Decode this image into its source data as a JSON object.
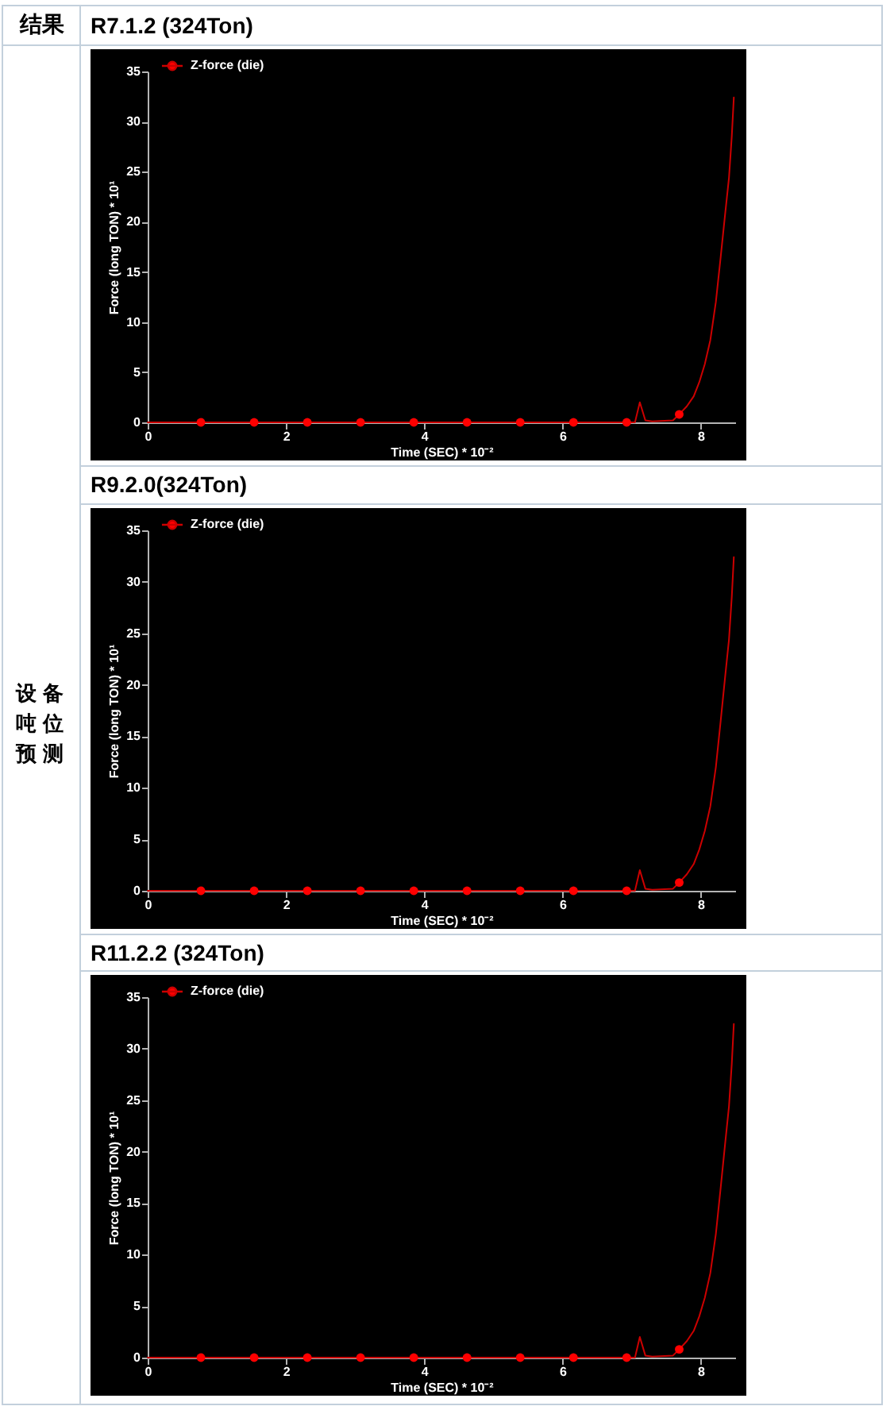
{
  "chart_data": [
    {
      "type": "line",
      "title": "R7.1.2 (324Ton)",
      "annotations": [
        "结果",
        "设备吨位预测"
      ],
      "xlabel": "Time (SEC) * 10⁻²",
      "ylabel": "Force (long TON) * 10¹",
      "xlim": [
        0,
        8.5
      ],
      "xticks": [
        0,
        2,
        4,
        6,
        8
      ],
      "ylim": [
        0,
        35
      ],
      "yticks": [
        0,
        5,
        10,
        15,
        20,
        25,
        30,
        35
      ],
      "legend": "top left",
      "series": [
        {
          "name": "Z-force (die)",
          "color": "#cc0000",
          "x": [
            0,
            7.05,
            7.12,
            7.2,
            7.3,
            7.6,
            7.69,
            7.8,
            7.9,
            7.98,
            8.06,
            8.14,
            8.22,
            8.29,
            8.35,
            8.41,
            8.45,
            8.48
          ],
          "values": [
            0,
            0,
            2.0,
            0.2,
            0.1,
            0.2,
            0.8,
            1.6,
            2.6,
            4.0,
            5.8,
            8.2,
            12,
            16.5,
            20.5,
            24.4,
            28.5,
            32.4
          ]
        },
        {
          "type": "scatter",
          "marker": "circle",
          "color": "#ff0000",
          "x": [
            0.77,
            1.54,
            2.31,
            3.08,
            3.85,
            4.62,
            5.39,
            6.16,
            6.93,
            7.69
          ],
          "values": [
            0,
            0,
            0,
            0,
            0,
            0,
            0,
            0,
            0,
            0.8
          ]
        }
      ]
    },
    {
      "type": "line",
      "title": "R9.2.0(324Ton)",
      "xlabel": "Time (SEC) * 10⁻²",
      "ylabel": "Force (long TON) * 10¹",
      "xlim": [
        0,
        8.5
      ],
      "xticks": [
        0,
        2,
        4,
        6,
        8
      ],
      "ylim": [
        0,
        35
      ],
      "yticks": [
        0,
        5,
        10,
        15,
        20,
        25,
        30,
        35
      ],
      "legend": "top left",
      "series": [
        {
          "name": "Z-force (die)",
          "color": "#cc0000",
          "x": [
            0,
            7.05,
            7.12,
            7.2,
            7.3,
            7.6,
            7.69,
            7.8,
            7.9,
            7.98,
            8.06,
            8.14,
            8.22,
            8.29,
            8.35,
            8.41,
            8.45,
            8.48
          ],
          "values": [
            0,
            0,
            2.0,
            0.2,
            0.1,
            0.2,
            0.8,
            1.6,
            2.6,
            4.0,
            5.8,
            8.2,
            12,
            16.5,
            20.5,
            24.4,
            28.5,
            32.4
          ]
        },
        {
          "type": "scatter",
          "marker": "circle",
          "color": "#ff0000",
          "x": [
            0.77,
            1.54,
            2.31,
            3.08,
            3.85,
            4.62,
            5.39,
            6.16,
            6.93,
            7.69
          ],
          "values": [
            0,
            0,
            0,
            0,
            0,
            0,
            0,
            0,
            0,
            0.8
          ]
        }
      ]
    },
    {
      "type": "line",
      "title": "R11.2.2 (324Ton)",
      "xlabel": "Time (SEC) * 10⁻²",
      "ylabel": "Force (long TON) * 10¹",
      "xlim": [
        0,
        8.5
      ],
      "xticks": [
        0,
        2,
        4,
        6,
        8
      ],
      "ylim": [
        0,
        35
      ],
      "yticks": [
        0,
        5,
        10,
        15,
        20,
        25,
        30,
        35
      ],
      "legend": "top left",
      "series": [
        {
          "name": "Z-force (die)",
          "color": "#cc0000",
          "x": [
            0,
            7.05,
            7.12,
            7.2,
            7.3,
            7.6,
            7.69,
            7.8,
            7.9,
            7.98,
            8.06,
            8.14,
            8.22,
            8.29,
            8.35,
            8.41,
            8.45,
            8.48
          ],
          "values": [
            0,
            0,
            2.0,
            0.2,
            0.1,
            0.2,
            0.8,
            1.6,
            2.6,
            4.0,
            5.8,
            8.2,
            12,
            16.5,
            20.5,
            24.4,
            28.5,
            32.4
          ]
        },
        {
          "type": "scatter",
          "marker": "circle",
          "color": "#ff0000",
          "x": [
            0.77,
            1.54,
            2.31,
            3.08,
            3.85,
            4.62,
            5.39,
            6.16,
            6.93,
            7.69
          ],
          "values": [
            0,
            0,
            0,
            0,
            0,
            0,
            0,
            0,
            0,
            0.8
          ]
        }
      ]
    }
  ]
}
